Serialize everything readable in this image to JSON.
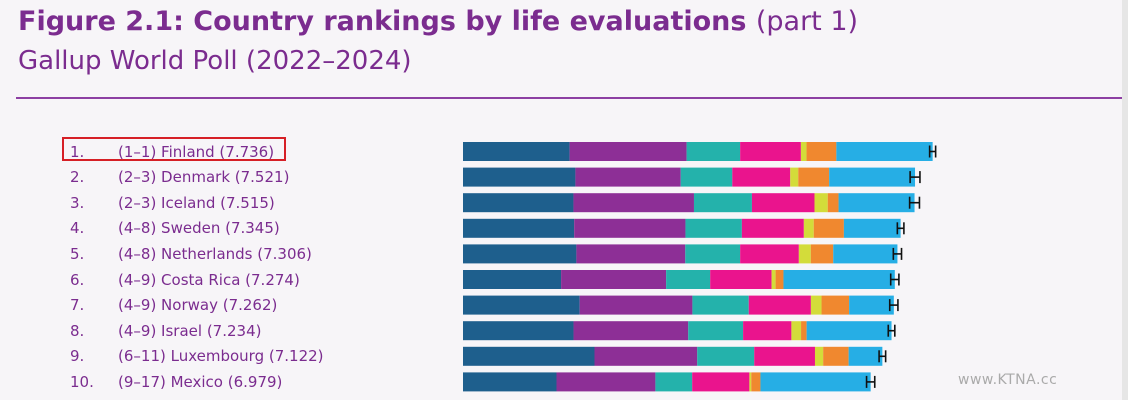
{
  "chart_data": {
    "type": "bar",
    "title_bold": "Figure 2.1: Country rankings by life evaluations",
    "title_part": "(part 1)",
    "subtitle": "Gallup World Poll (2022–2024)",
    "xlim": [
      0,
      8
    ],
    "segment_colors": [
      "#1e5f8d",
      "#8d2f96",
      "#24b2ab",
      "#ea148d",
      "#d3dc3a",
      "#f0882f",
      "#26aee5"
    ],
    "rows": [
      {
        "rank": "1.",
        "label": "(1–1) Finland (7.736)",
        "segments": [
          1.302,
          1.429,
          0.654,
          0.742,
          0.069,
          0.364,
          1.176
        ],
        "ci": 0.02
      },
      {
        "rank": "2.",
        "label": "(2–3) Denmark (7.521)",
        "segments": [
          1.373,
          1.286,
          0.63,
          0.708,
          0.098,
          0.377,
          1.049
        ],
        "ci": 0.06
      },
      {
        "rank": "3.",
        "label": "(2–3) Iceland (7.515)",
        "segments": [
          1.349,
          1.472,
          0.708,
          0.764,
          0.162,
          0.132,
          0.928
        ],
        "ci": 0.06
      },
      {
        "rank": "4.",
        "label": "(4–8) Sweden (7.345)",
        "segments": [
          1.358,
          1.359,
          0.689,
          0.757,
          0.121,
          0.368,
          0.693
        ],
        "ci": 0.04
      },
      {
        "rank": "5.",
        "label": "(4–8) Netherlands (7.306)",
        "segments": [
          1.385,
          1.33,
          0.67,
          0.717,
          0.146,
          0.274,
          0.784
        ],
        "ci": 0.05
      },
      {
        "rank": "6.",
        "label": "(4–9) Costa Rica (7.274)",
        "segments": [
          1.198,
          1.283,
          0.538,
          0.75,
          0.049,
          0.096,
          1.36
        ],
        "ci": 0.05
      },
      {
        "rank": "7.",
        "label": "(4–9) Norway (7.262)",
        "segments": [
          1.425,
          1.377,
          0.688,
          0.759,
          0.13,
          0.337,
          0.546
        ],
        "ci": 0.05
      },
      {
        "rank": "8.",
        "label": "(4–9) Israel (7.234)",
        "segments": [
          1.35,
          1.401,
          0.67,
          0.59,
          0.118,
          0.068,
          1.037
        ],
        "ci": 0.04
      },
      {
        "rank": "9.",
        "label": "(6–11) Luxembourg (7.122)",
        "segments": [
          1.606,
          1.255,
          0.696,
          0.742,
          0.1,
          0.311,
          0.412
        ],
        "ci": 0.04
      },
      {
        "rank": "10.",
        "label": "(9–17) Mexico (6.979)",
        "segments": [
          1.142,
          1.208,
          0.449,
          0.699,
          0.023,
          0.112,
          1.346
        ],
        "ci": 0.05
      }
    ]
  },
  "watermark": "www.KTNA.cc"
}
